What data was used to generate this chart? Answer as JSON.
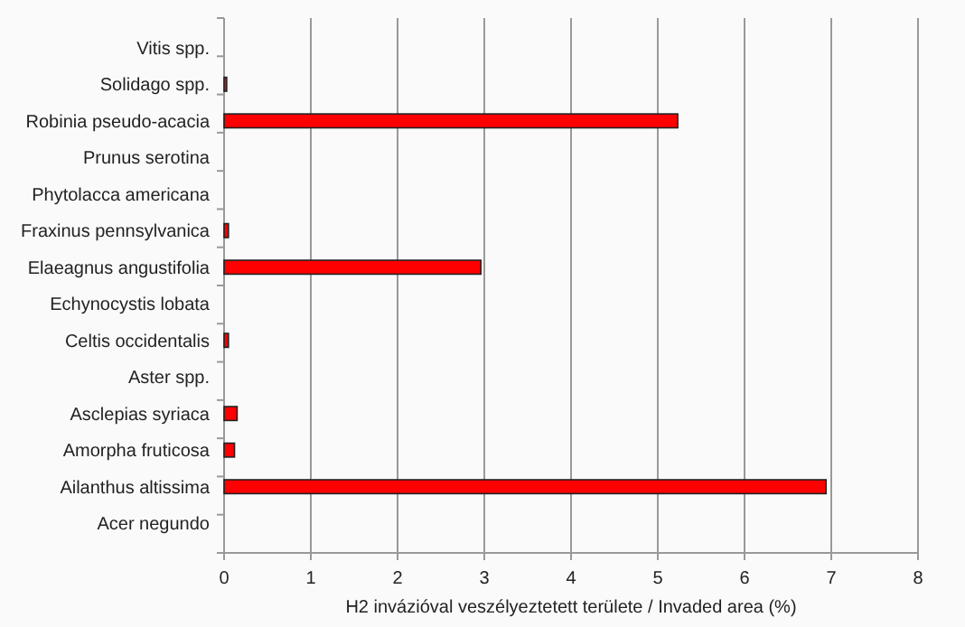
{
  "chart_data": {
    "type": "bar",
    "orientation": "horizontal",
    "xlabel": "H2 invázióval veszélyeztetett területe / Invaded area  (%)",
    "categories": [
      "Vitis spp.",
      "Solidago spp.",
      "Robinia pseudo-acacia",
      "Prunus serotina",
      "Phytolacca americana",
      "Fraxinus pennsylvanica",
      "Elaeagnus angustifolia",
      "Echynocystis lobata",
      "Celtis occidentalis",
      "Aster spp.",
      "Asclepias syriaca",
      "Amorpha fruticosa",
      "Ailanthus altissima",
      "Acer negundo"
    ],
    "values": [
      0,
      0.03,
      5.23,
      0,
      0,
      0.05,
      2.96,
      0,
      0.05,
      0,
      0.15,
      0.12,
      6.94,
      0
    ],
    "color": "#ff0000",
    "xlim": [
      0,
      8
    ],
    "xticks": [
      0,
      1,
      2,
      3,
      4,
      5,
      6,
      7,
      8
    ],
    "grid": "x"
  }
}
